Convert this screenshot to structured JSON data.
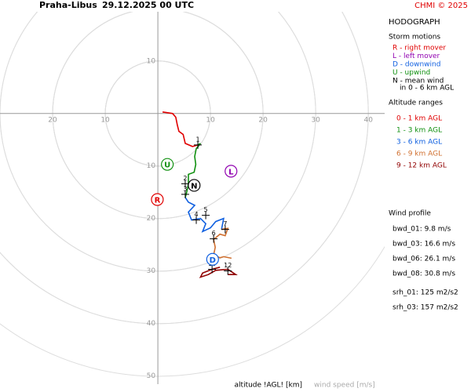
{
  "chart_data": {
    "type": "hodograph",
    "title": "Praha-Libus",
    "subtitle": "29.12.2025 00 UTC",
    "credit": "CHMI © 2025",
    "panel_title": "HODOGRAPH",
    "x_label": "altitude !AGL! [km]",
    "y_label": "wind speed [m/s]",
    "xlim": [
      -30,
      43.1
    ],
    "ylim": [
      51.6,
      -19.4
    ],
    "xticks": [
      {
        "value": -20,
        "label": "20"
      },
      {
        "value": -10,
        "label": "10"
      },
      10,
      20,
      30,
      40
    ],
    "yticks": [
      {
        "value": -10,
        "label": "10"
      },
      10,
      20,
      30,
      40,
      50
    ],
    "grid": true,
    "storm_motions_title": "Storm motions",
    "storm_motions": [
      {
        "label": "R",
        "legend": "R - right mover",
        "color": "#e00000",
        "x": -0.1,
        "y": 16.4
      },
      {
        "label": "L",
        "legend": "L - left mover",
        "color": "#9000b0",
        "x": 13.9,
        "y": 11.0
      },
      {
        "label": "D",
        "legend": "D - downwind",
        "color": "#1060e0",
        "x": 10.4,
        "y": 27.8
      },
      {
        "label": "U",
        "legend": "U - upwind",
        "color": "#109010",
        "x": 1.8,
        "y": 9.7
      },
      {
        "label": "N",
        "legend": "N - mean wind",
        "color": "#000000",
        "x": 6.9,
        "y": 13.7
      }
    ],
    "mean_wind_note": "in 0 - 6 km AGL",
    "altitude_title": "Altitude ranges",
    "series": [
      {
        "name": "0 - 1 km AGL",
        "color": "#e00000",
        "x": [
          0.9,
          2.8,
          3.4,
          3.7,
          4.0,
          4.8,
          5.2,
          6.6,
          7.6
        ],
        "values": [
          -0.3,
          0,
          0.7,
          2.2,
          3.4,
          4.0,
          5.7,
          6.3,
          6.0
        ]
      },
      {
        "name": "1 - 3 km AGL",
        "color": "#109010",
        "x": [
          7.6,
          8.1,
          7.3,
          7.0,
          7.2,
          6.9,
          5.8,
          5.8,
          5.5,
          5.2
        ],
        "values": [
          6.0,
          5.7,
          6.7,
          8.2,
          9.7,
          11.2,
          11.6,
          13.4,
          14.9,
          16.0
        ]
      },
      {
        "name": "3 - 6 km AGL",
        "color": "#1060e0",
        "x": [
          5.2,
          5.8,
          7.0,
          5.8,
          6.4,
          8.1,
          9.1,
          8.5,
          10.0,
          11.0,
          12.5,
          12.1
        ],
        "values": [
          16.0,
          16.9,
          17.5,
          18.8,
          20.3,
          20.0,
          21.0,
          22.5,
          21.8,
          20.6,
          20.0,
          22.1
        ]
      },
      {
        "name": "6 - 9 km AGL",
        "color": "#d07030",
        "x": [
          12.1,
          13.3,
          12.8,
          11.8,
          10.6,
          10.9,
          10.6,
          11.8,
          12.5,
          14.0
        ],
        "values": [
          22.1,
          21.9,
          23.3,
          23.0,
          24.0,
          25.5,
          27.0,
          27.5,
          27.3,
          27.6
        ]
      },
      {
        "name": "9 - 12 km AGL",
        "color": "#900000",
        "x": [
          11.8,
          10.3,
          8.5,
          8.1,
          9.6,
          11.0,
          13.3,
          14.8,
          13.3
        ],
        "values": [
          29.3,
          29.7,
          30.4,
          31.2,
          30.7,
          29.9,
          29.7,
          30.7,
          30.7
        ]
      }
    ],
    "km_markers": [
      {
        "label": "1",
        "x": 7.6,
        "y": 6.0
      },
      {
        "label": "2",
        "x": 5.2,
        "y": 13.4
      },
      {
        "label": "3",
        "x": 5.2,
        "y": 15.4
      },
      {
        "label": "4",
        "x": 7.3,
        "y": 20.3
      },
      {
        "label": "5",
        "x": 9.1,
        "y": 19.4
      },
      {
        "label": "6",
        "x": 10.6,
        "y": 23.9
      },
      {
        "label": "7",
        "x": 12.8,
        "y": 22.1
      },
      {
        "label": "10",
        "x": 10.3,
        "y": 29.7
      },
      {
        "label": "12",
        "x": 13.3,
        "y": 30.0
      }
    ],
    "wind_profile_title": "Wind profile",
    "wind_profile": [
      "bwd_01: 9.8 m/s",
      "bwd_03: 16.6 m/s",
      "bwd_06: 26.1 m/s",
      "bwd_08: 30.8 m/s",
      "srh_01: 125 m2/s2",
      "srh_03: 157 m2/s2"
    ]
  }
}
